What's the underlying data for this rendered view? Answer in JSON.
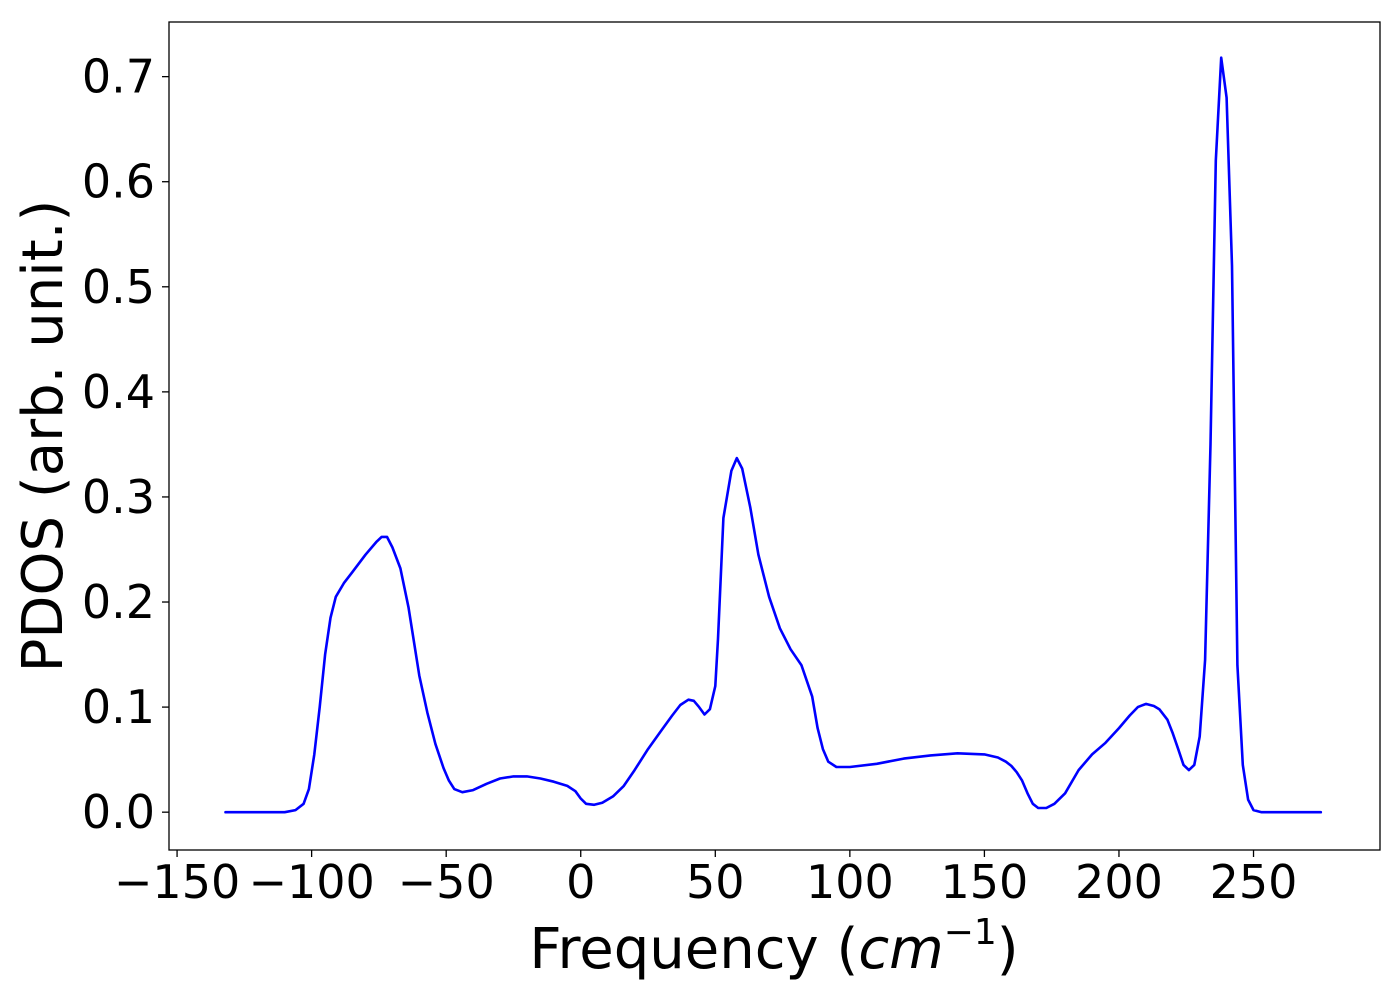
{
  "chart_data": {
    "type": "line",
    "title": "",
    "xlabel": "Frequency (",
    "xlabel_math": "cm",
    "xlabel_exp": "−1",
    "xlabel_close": ")",
    "ylabel": "PDOS (arb. unit.)",
    "xlim": [
      -153,
      297
    ],
    "ylim": [
      -0.036,
      0.752
    ],
    "xticks": [
      -150,
      -100,
      -50,
      0,
      50,
      100,
      150,
      200,
      250
    ],
    "xtick_labels": [
      "−150",
      "−100",
      "−50",
      "0",
      "50",
      "100",
      "150",
      "200",
      "250"
    ],
    "yticks": [
      0.0,
      0.1,
      0.2,
      0.3,
      0.4,
      0.5,
      0.6,
      0.7
    ],
    "ytick_labels": [
      "0.0",
      "0.1",
      "0.2",
      "0.3",
      "0.4",
      "0.5",
      "0.6",
      "0.7"
    ],
    "grid": false,
    "series": [
      {
        "color": "#0000ff",
        "x": [
          -132,
          -120,
          -110,
          -106,
          -103,
          -101,
          -99,
          -97,
          -95,
          -93,
          -91,
          -88,
          -85,
          -80,
          -76,
          -74,
          -72,
          -70,
          -67,
          -64,
          -60,
          -57,
          -54,
          -51,
          -49,
          -47,
          -44,
          -40,
          -35,
          -30,
          -25,
          -20,
          -15,
          -10,
          -5,
          -2,
          0,
          2,
          5,
          8,
          12,
          16,
          20,
          25,
          30,
          34,
          37,
          40,
          42,
          44,
          46,
          48,
          50,
          51,
          53,
          56,
          58,
          60,
          63,
          66,
          70,
          74,
          78,
          82,
          86,
          88,
          90,
          92,
          95,
          100,
          110,
          120,
          130,
          140,
          150,
          155,
          158,
          160,
          162,
          164,
          166,
          168,
          170,
          173,
          176,
          180,
          185,
          190,
          195,
          200,
          204,
          207,
          210,
          213,
          215,
          218,
          220,
          222,
          224,
          226,
          228,
          230,
          232,
          234,
          236,
          238,
          240,
          242,
          244,
          246,
          248,
          250,
          253,
          260,
          275
        ],
        "y": [
          0.0,
          0.0,
          0.0,
          0.002,
          0.008,
          0.022,
          0.055,
          0.1,
          0.15,
          0.185,
          0.205,
          0.218,
          0.228,
          0.245,
          0.257,
          0.262,
          0.262,
          0.252,
          0.232,
          0.195,
          0.13,
          0.095,
          0.065,
          0.042,
          0.03,
          0.022,
          0.019,
          0.021,
          0.027,
          0.032,
          0.034,
          0.034,
          0.032,
          0.029,
          0.025,
          0.02,
          0.013,
          0.008,
          0.007,
          0.009,
          0.015,
          0.025,
          0.04,
          0.06,
          0.078,
          0.092,
          0.102,
          0.107,
          0.106,
          0.1,
          0.093,
          0.098,
          0.12,
          0.165,
          0.28,
          0.325,
          0.337,
          0.327,
          0.29,
          0.245,
          0.205,
          0.175,
          0.155,
          0.14,
          0.11,
          0.08,
          0.06,
          0.048,
          0.043,
          0.043,
          0.046,
          0.051,
          0.054,
          0.056,
          0.055,
          0.052,
          0.048,
          0.044,
          0.038,
          0.03,
          0.018,
          0.008,
          0.004,
          0.004,
          0.008,
          0.018,
          0.04,
          0.055,
          0.066,
          0.08,
          0.092,
          0.1,
          0.103,
          0.101,
          0.098,
          0.088,
          0.075,
          0.06,
          0.045,
          0.04,
          0.045,
          0.072,
          0.145,
          0.35,
          0.62,
          0.718,
          0.68,
          0.52,
          0.14,
          0.045,
          0.012,
          0.002,
          0.0,
          0.0,
          0.0
        ]
      }
    ]
  }
}
